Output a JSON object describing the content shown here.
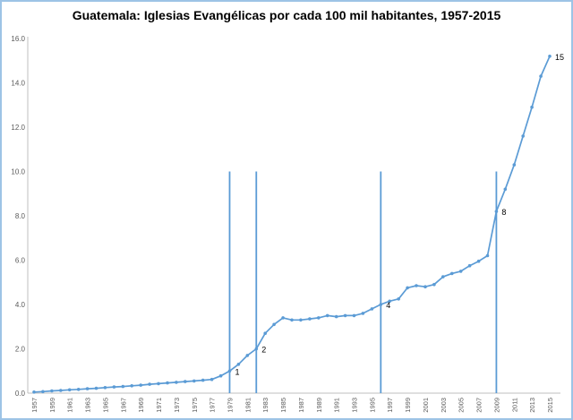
{
  "chart_data": {
    "type": "line",
    "title": "Guatemala: Iglesias Evangélicas por cada 100 mil habitantes, 1957-2015",
    "xlabel": "",
    "ylabel": "",
    "ylim": [
      0,
      16
    ],
    "ytick_step": 2,
    "ytick_format": "one-decimal",
    "grid": false,
    "legend": "none",
    "marker": "circle",
    "x": [
      1957,
      1958,
      1959,
      1960,
      1961,
      1962,
      1963,
      1964,
      1965,
      1966,
      1967,
      1968,
      1969,
      1970,
      1971,
      1972,
      1973,
      1974,
      1975,
      1976,
      1977,
      1978,
      1979,
      1980,
      1981,
      1982,
      1983,
      1984,
      1985,
      1986,
      1987,
      1988,
      1989,
      1990,
      1991,
      1992,
      1993,
      1994,
      1995,
      1996,
      1997,
      1998,
      1999,
      2000,
      2001,
      2002,
      2003,
      2004,
      2005,
      2006,
      2007,
      2008,
      2009,
      2010,
      2011,
      2012,
      2013,
      2014,
      2015
    ],
    "values": [
      0.05,
      0.07,
      0.1,
      0.12,
      0.15,
      0.17,
      0.2,
      0.22,
      0.25,
      0.28,
      0.3,
      0.33,
      0.36,
      0.4,
      0.43,
      0.46,
      0.49,
      0.52,
      0.55,
      0.58,
      0.62,
      0.78,
      1.0,
      1.3,
      1.7,
      2.0,
      2.7,
      3.1,
      3.4,
      3.3,
      3.3,
      3.35,
      3.4,
      3.5,
      3.45,
      3.5,
      3.5,
      3.6,
      3.8,
      4.0,
      4.15,
      4.25,
      4.75,
      4.85,
      4.8,
      4.9,
      5.25,
      5.4,
      5.5,
      5.75,
      5.95,
      6.2,
      8.2,
      9.2,
      10.3,
      11.6,
      12.9,
      14.3,
      15.2
    ],
    "xtick_labels": [
      "1957",
      "1959",
      "1961",
      "1963",
      "1965",
      "1967",
      "1969",
      "1971",
      "1973",
      "1975",
      "1977",
      "1979",
      "1981",
      "1983",
      "1985",
      "1987",
      "1989",
      "1991",
      "1993",
      "1995",
      "1997",
      "1999",
      "2001",
      "2003",
      "2005",
      "2007",
      "2009",
      "2011",
      "2013",
      "2015"
    ],
    "milestone_lines": [
      {
        "year": 1979,
        "top": 10
      },
      {
        "year": 1982,
        "top": 10
      },
      {
        "year": 1996,
        "top": 10
      },
      {
        "year": 2009,
        "top": 10
      }
    ],
    "annotations": [
      {
        "year": 1979,
        "value": 1.0,
        "label": "1"
      },
      {
        "year": 1982,
        "value": 2.0,
        "label": "2"
      },
      {
        "year": 1996,
        "value": 4.0,
        "label": "4"
      },
      {
        "year": 2009,
        "value": 8.2,
        "label": "8"
      },
      {
        "year": 2015,
        "value": 15.2,
        "label": "15"
      }
    ],
    "colors": {
      "line": "#5b9bd5",
      "marker": "#5b9bd5",
      "milestone": "#5b9bd5",
      "axis": "#bfbfbf",
      "tick_text": "#595959",
      "annotation_text": "#000000",
      "border": "#9dc3e6",
      "title": "#000000"
    }
  }
}
